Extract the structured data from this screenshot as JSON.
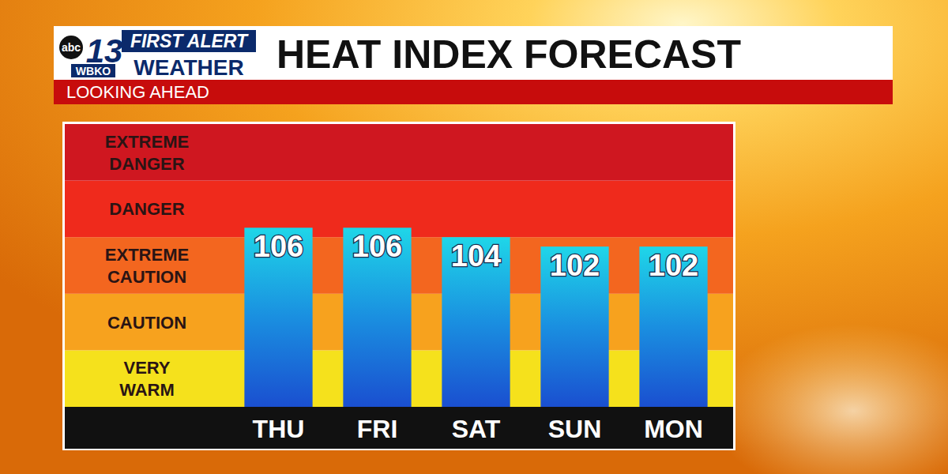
{
  "branding": {
    "network": "abc",
    "channel": "13",
    "station": "WBKO",
    "line1": "FIRST ALERT",
    "line2": "WEATHER"
  },
  "chart_data": {
    "type": "bar",
    "title": "HEAT INDEX FORECAST",
    "subtitle": "LOOKING AHEAD",
    "categories": [
      "THU",
      "FRI",
      "SAT",
      "SUN",
      "MON"
    ],
    "values": [
      106,
      106,
      104,
      102,
      102
    ],
    "color": "#1a8fe0",
    "ylim": [
      68,
      128
    ],
    "tick_labels": false,
    "grid": false,
    "data_labels": true,
    "bands": [
      {
        "label": "VERY WARM",
        "from": 68,
        "to": 80,
        "color": "#f5e11c"
      },
      {
        "label": "CAUTION",
        "from": 80,
        "to": 92,
        "color": "#f7a21e"
      },
      {
        "label": "EXTREME CAUTION",
        "from": 92,
        "to": 104,
        "color": "#f3661f"
      },
      {
        "label": "DANGER",
        "from": 104,
        "to": 116,
        "color": "#ef2a1c"
      },
      {
        "label": "EXTREME DANGER",
        "from": 116,
        "to": 128,
        "color": "#cf1720"
      }
    ]
  }
}
